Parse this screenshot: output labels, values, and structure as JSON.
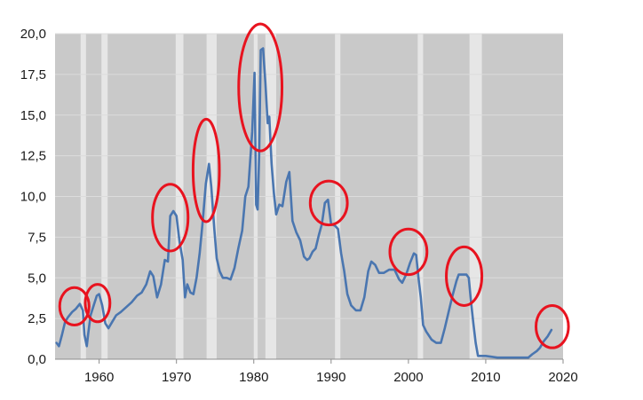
{
  "chart_data": {
    "type": "line",
    "title": "",
    "xlabel": "",
    "ylabel": "",
    "xlim": [
      1954.3,
      2020
    ],
    "ylim": [
      0,
      20
    ],
    "grid": true,
    "x_ticks": [
      1960,
      1970,
      1980,
      1990,
      2000,
      2010,
      2020
    ],
    "x_tick_labels": [
      "1960",
      "1970",
      "1980",
      "1990",
      "2000",
      "2010",
      "2020"
    ],
    "y_ticks": [
      0,
      2.5,
      5,
      7.5,
      10,
      12.5,
      15,
      17.5,
      20
    ],
    "y_tick_labels": [
      "0,0",
      "2,5",
      "5,0",
      "7,5",
      "10,0",
      "12,5",
      "15,0",
      "17,5",
      "20,0"
    ],
    "plot_background": "#c9c9c9",
    "recession_color": "#e6e6e6",
    "recessions": [
      [
        1957.6,
        1958.3
      ],
      [
        1960.3,
        1961.1
      ],
      [
        1969.9,
        1970.9
      ],
      [
        1973.9,
        1975.2
      ],
      [
        1980.0,
        1980.5
      ],
      [
        1981.5,
        1982.9
      ],
      [
        1990.5,
        1991.2
      ],
      [
        2001.2,
        2001.9
      ],
      [
        2007.9,
        2009.5
      ]
    ],
    "series": [
      {
        "color": "#4a76b0",
        "x": [
          1954.5,
          1954.8,
          1955.2,
          1955.6,
          1956.0,
          1956.5,
          1957.0,
          1957.5,
          1957.9,
          1958.1,
          1958.4,
          1958.6,
          1958.9,
          1959.3,
          1959.7,
          1960.0,
          1960.4,
          1960.8,
          1961.2,
          1961.7,
          1962.2,
          1962.8,
          1963.5,
          1964.2,
          1964.9,
          1965.5,
          1966.1,
          1966.6,
          1967.0,
          1967.5,
          1968.0,
          1968.5,
          1968.9,
          1969.2,
          1969.6,
          1970.0,
          1970.4,
          1970.8,
          1971.1,
          1971.4,
          1971.8,
          1972.2,
          1972.6,
          1973.0,
          1973.4,
          1973.8,
          1974.2,
          1974.5,
          1974.9,
          1975.2,
          1975.6,
          1976.0,
          1976.5,
          1977.0,
          1977.5,
          1978.0,
          1978.5,
          1978.9,
          1979.3,
          1979.8,
          1980.1,
          1980.3,
          1980.5,
          1980.7,
          1980.9,
          1981.2,
          1981.5,
          1981.8,
          1982.0,
          1982.3,
          1982.6,
          1982.9,
          1983.3,
          1983.7,
          1984.2,
          1984.6,
          1985.0,
          1985.5,
          1986.0,
          1986.5,
          1986.9,
          1987.2,
          1987.6,
          1988.0,
          1988.4,
          1988.8,
          1989.2,
          1989.6,
          1990.0,
          1990.5,
          1990.9,
          1991.3,
          1991.7,
          1992.1,
          1992.6,
          1993.2,
          1993.8,
          1994.3,
          1994.8,
          1995.2,
          1995.7,
          1996.2,
          1996.8,
          1997.5,
          1998.2,
          1998.8,
          1999.2,
          1999.7,
          2000.2,
          2000.7,
          2001.0,
          2001.3,
          2001.6,
          2001.9,
          2002.3,
          2003.0,
          2003.6,
          2004.2,
          2004.7,
          2005.2,
          2005.7,
          2006.2,
          2006.5,
          2007.0,
          2007.5,
          2007.8,
          2008.1,
          2008.4,
          2008.7,
          2009.0,
          2010.0,
          2011.5,
          2013.0,
          2014.5,
          2015.5,
          2016.0,
          2016.6,
          2017.0,
          2017.5,
          2018.0,
          2018.5
        ],
        "y": [
          1.0,
          0.8,
          1.5,
          2.3,
          2.6,
          2.9,
          3.1,
          3.4,
          3.0,
          1.5,
          0.8,
          1.6,
          2.7,
          3.3,
          3.9,
          4.0,
          3.3,
          2.2,
          1.9,
          2.3,
          2.7,
          2.9,
          3.2,
          3.5,
          3.9,
          4.1,
          4.6,
          5.4,
          5.1,
          3.8,
          4.6,
          6.1,
          6.0,
          8.8,
          9.1,
          8.8,
          7.2,
          6.1,
          3.8,
          4.6,
          4.1,
          4.0,
          5.0,
          6.5,
          8.5,
          10.8,
          12.0,
          10.6,
          8.0,
          6.2,
          5.4,
          5.0,
          5.0,
          4.9,
          5.6,
          6.8,
          7.9,
          10.0,
          10.6,
          14.0,
          17.6,
          9.5,
          9.2,
          12.5,
          19.0,
          19.1,
          17.0,
          14.5,
          14.9,
          12.0,
          10.2,
          8.9,
          9.5,
          9.4,
          10.9,
          11.5,
          8.5,
          7.8,
          7.3,
          6.3,
          6.1,
          6.2,
          6.6,
          6.8,
          7.6,
          8.3,
          9.6,
          9.8,
          8.3,
          8.2,
          8.0,
          6.5,
          5.4,
          4.0,
          3.3,
          3.0,
          3.0,
          3.8,
          5.4,
          6.0,
          5.8,
          5.3,
          5.3,
          5.5,
          5.5,
          4.9,
          4.7,
          5.2,
          5.9,
          6.5,
          6.4,
          5.0,
          3.8,
          2.1,
          1.7,
          1.2,
          1.0,
          1.0,
          1.9,
          2.9,
          3.9,
          4.8,
          5.2,
          5.2,
          5.2,
          5.0,
          3.5,
          2.2,
          1.0,
          0.2,
          0.2,
          0.1,
          0.1,
          0.1,
          0.1,
          0.3,
          0.5,
          0.7,
          1.1,
          1.4,
          1.8
        ]
      }
    ]
  },
  "highlights": {
    "color": "#e8131f",
    "ellipses": [
      {
        "x": 1956.8,
        "y": 3.25,
        "rx": 1.9,
        "ry": 1.15
      },
      {
        "x": 1959.8,
        "y": 3.45,
        "rx": 1.6,
        "ry": 1.15
      },
      {
        "x": 1969.2,
        "y": 8.7,
        "rx": 2.3,
        "ry": 2.05
      },
      {
        "x": 1973.85,
        "y": 11.6,
        "rx": 1.7,
        "ry": 3.15
      },
      {
        "x": 1980.85,
        "y": 16.7,
        "rx": 2.8,
        "ry": 3.9
      },
      {
        "x": 1989.7,
        "y": 9.6,
        "rx": 2.4,
        "ry": 1.35
      },
      {
        "x": 2000.0,
        "y": 6.6,
        "rx": 2.4,
        "ry": 1.4
      },
      {
        "x": 2007.2,
        "y": 5.1,
        "rx": 2.3,
        "ry": 1.8
      },
      {
        "x": 2018.6,
        "y": 2.0,
        "rx": 2.1,
        "ry": 1.3
      }
    ]
  }
}
